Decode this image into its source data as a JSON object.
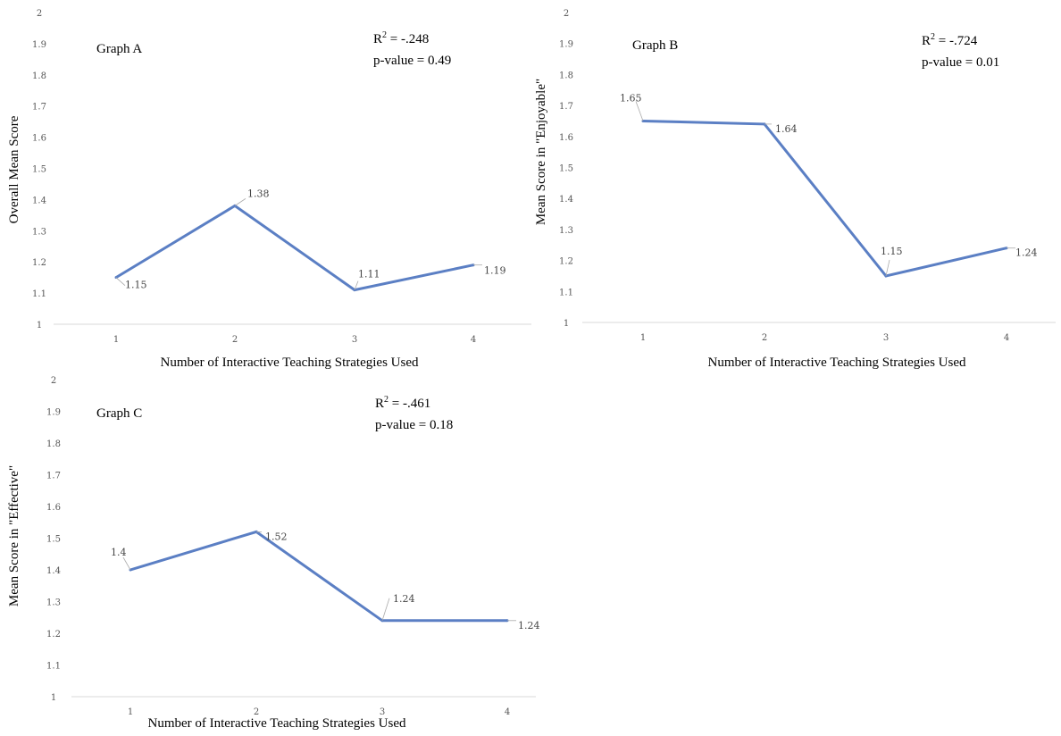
{
  "chart_data": [
    {
      "type": "line",
      "title": "Graph A",
      "r2_label": "R",
      "r2_sup": "2",
      "r2_value": " = -.248",
      "p_value": "p-value = 0.49",
      "xlabel": "Number of Interactive Teaching Strategies Used",
      "ylabel": "Overall Mean Score",
      "x": [
        1,
        2,
        3,
        4
      ],
      "values": [
        1.15,
        1.38,
        1.11,
        1.19
      ],
      "value_labels": [
        "1.15",
        "1.38",
        "1.11",
        "1.19"
      ],
      "x_ticks": [
        "1",
        "2",
        "3",
        "4"
      ],
      "y_ticks": [
        "1",
        "1.1",
        "1.2",
        "1.3",
        "1.4",
        "1.5",
        "1.6",
        "1.7",
        "1.8",
        "1.9",
        "2"
      ],
      "ylim": [
        1,
        2
      ],
      "color": "#5b7fc4"
    },
    {
      "type": "line",
      "title": "Graph B",
      "r2_label": "R",
      "r2_sup": "2",
      "r2_value": " = -.724",
      "p_value": "p-value = 0.01",
      "xlabel": "Number of Interactive Teaching Strategies Used",
      "ylabel": "Mean Score in \"Enjoyable\"",
      "x": [
        1,
        2,
        3,
        4
      ],
      "values": [
        1.65,
        1.64,
        1.15,
        1.24
      ],
      "value_labels": [
        "1.65",
        "1.64",
        "1.15",
        "1.24"
      ],
      "x_ticks": [
        "1",
        "2",
        "3",
        "4"
      ],
      "y_ticks": [
        "1",
        "1.1",
        "1.2",
        "1.3",
        "1.4",
        "1.5",
        "1.6",
        "1.7",
        "1.8",
        "1.9",
        "2"
      ],
      "ylim": [
        1,
        2
      ],
      "color": "#5b7fc4"
    },
    {
      "type": "line",
      "title": "Graph C",
      "r2_label": "R",
      "r2_sup": "2",
      "r2_value": " = -.461",
      "p_value": "p-value = 0.18",
      "xlabel": "Number of Interactive Teaching Strategies Used",
      "ylabel": "Mean Score in \"Effective\"",
      "x": [
        1,
        2,
        3,
        4
      ],
      "values": [
        1.4,
        1.52,
        1.24,
        1.24
      ],
      "value_labels": [
        "1.4",
        "1.52",
        "1.24",
        "1.24"
      ],
      "x_ticks": [
        "1",
        "2",
        "3",
        "4"
      ],
      "y_ticks": [
        "1",
        "1.1",
        "1.2",
        "1.3",
        "1.4",
        "1.5",
        "1.6",
        "1.7",
        "1.8",
        "1.9",
        "2"
      ],
      "ylim": [
        1,
        2
      ],
      "color": "#5b7fc4"
    }
  ]
}
